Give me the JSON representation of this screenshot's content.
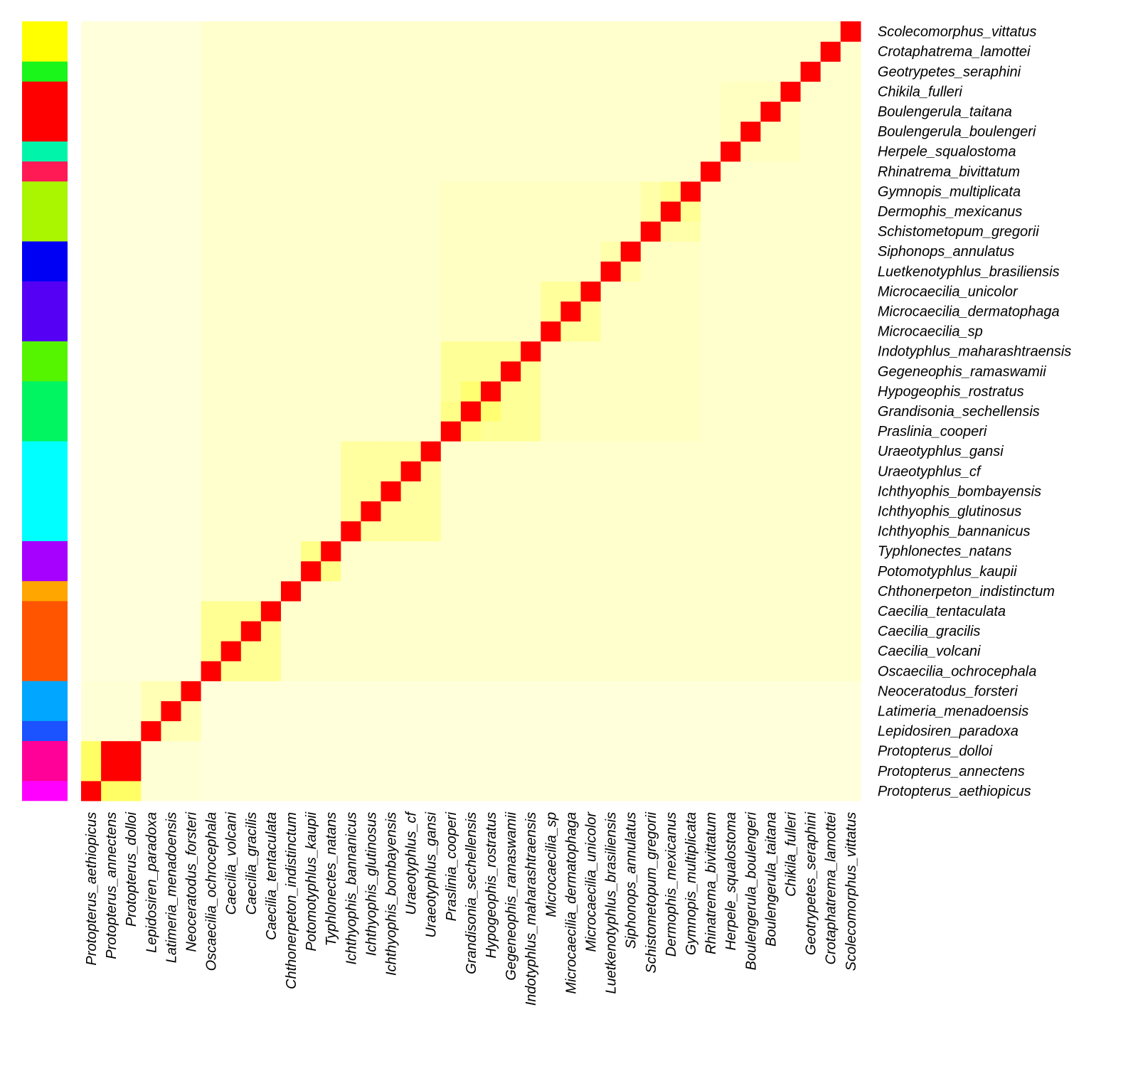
{
  "chart_data": {
    "type": "heatmap",
    "title": "",
    "xlabel": "",
    "ylabel": "",
    "labels": [
      "Protopterus_aethiopicus",
      "Protopterus_annectens",
      "Protopterus_dolloi",
      "Lepidosiren_paradoxa",
      "Latimeria_menadoensis",
      "Neoceratodus_forsteri",
      "Oscaecilia_ochrocephala",
      "Caecilia_volcani",
      "Caecilia_gracilis",
      "Caecilia_tentaculata",
      "Chthonerpeton_indistinctum",
      "Potomotyphlus_kaupii",
      "Typhlonectes_natans",
      "Ichthyophis_bannanicus",
      "Ichthyophis_glutinosus",
      "Ichthyophis_bombayensis",
      "Uraeotyphlus_cf",
      "Uraeotyphlus_gansi",
      "Praslinia_cooperi",
      "Grandisonia_sechellensis",
      "Hypogeophis_rostratus",
      "Gegeneophis_ramaswamii",
      "Indotyphlus_maharashtraensis",
      "Microcaecilia_sp",
      "Microcaecilia_dermatophaga",
      "Microcaecilia_unicolor",
      "Luetkenotyphlus_brasiliensis",
      "Siphonops_annulatus",
      "Schistometopum_gregorii",
      "Dermophis_mexicanus",
      "Gymnopis_multiplicata",
      "Rhinatrema_bivittatum",
      "Herpele_squalostoma",
      "Boulengerula_boulengeri",
      "Boulengerula_taitana",
      "Chikila_fulleri",
      "Geotrypetes_seraphini",
      "Crotaphatrema_lamottei",
      "Scolecomorphus_vittatus"
    ],
    "group_bar": [
      {
        "start": 0,
        "end": 0,
        "color": "#ff00ff"
      },
      {
        "start": 1,
        "end": 2,
        "color": "#ff0099"
      },
      {
        "start": 3,
        "end": 3,
        "color": "#1a53ff"
      },
      {
        "start": 4,
        "end": 5,
        "color": "#00a6ff"
      },
      {
        "start": 6,
        "end": 9,
        "color": "#ff5500"
      },
      {
        "start": 10,
        "end": 10,
        "color": "#ffa600"
      },
      {
        "start": 11,
        "end": 12,
        "color": "#a600ff"
      },
      {
        "start": 13,
        "end": 17,
        "color": "#00ffff"
      },
      {
        "start": 18,
        "end": 20,
        "color": "#00f560"
      },
      {
        "start": 21,
        "end": 22,
        "color": "#55f500"
      },
      {
        "start": 23,
        "end": 25,
        "color": "#5500f5"
      },
      {
        "start": 26,
        "end": 27,
        "color": "#0000f5"
      },
      {
        "start": 28,
        "end": 30,
        "color": "#aaf500"
      },
      {
        "start": 31,
        "end": 31,
        "color": "#ff1a55"
      },
      {
        "start": 32,
        "end": 32,
        "color": "#00f5aa"
      },
      {
        "start": 33,
        "end": 35,
        "color": "#ff0000"
      },
      {
        "start": 36,
        "end": 36,
        "color": "#1af51a"
      },
      {
        "start": 37,
        "end": 38,
        "color": "#ffff00"
      }
    ],
    "blocks": [
      {
        "start": 0,
        "end": 2,
        "value": 0.9,
        "strong": [
          [
            0,
            1,
            0.82
          ],
          [
            0,
            2,
            0.82
          ],
          [
            1,
            2,
            1.0
          ]
        ]
      },
      {
        "start": 3,
        "end": 5,
        "value": 0.35
      },
      {
        "start": 6,
        "end": 9,
        "value": 0.55
      },
      {
        "start": 11,
        "end": 12,
        "value": 0.62
      },
      {
        "start": 13,
        "end": 17,
        "value": 0.48
      },
      {
        "start": 18,
        "end": 22,
        "value": 0.52,
        "strong": [
          [
            19,
            20,
            0.75
          ],
          [
            18,
            19,
            0.62
          ]
        ]
      },
      {
        "start": 23,
        "end": 25,
        "value": 0.5
      },
      {
        "start": 26,
        "end": 27,
        "value": 0.4
      },
      {
        "start": 28,
        "end": 30,
        "value": 0.42,
        "strong": [
          [
            29,
            30,
            0.55
          ]
        ]
      }
    ],
    "superblocks": [
      {
        "start": 6,
        "end": 38,
        "value": 0.2
      },
      {
        "start": 18,
        "end": 30,
        "value": 0.26
      },
      {
        "start": 32,
        "end": 35,
        "value": 0.28
      },
      {
        "start": 0,
        "end": 5,
        "value": 0.16
      }
    ],
    "background_value": 0.12,
    "diagonal_value": 1.0,
    "color_scale": {
      "low": "#fffff0",
      "mid": "#ffff60",
      "high": "#ff0000"
    },
    "legend": "none",
    "row_order": "reversed"
  }
}
